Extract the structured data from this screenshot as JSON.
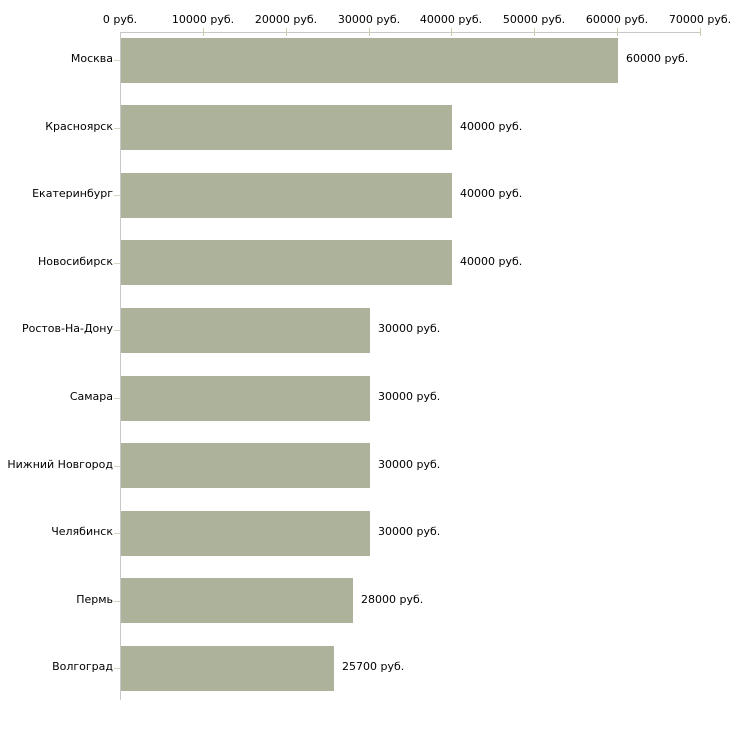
{
  "chart_data": {
    "type": "bar",
    "orientation": "horizontal",
    "title": "",
    "categories": [
      "Москва",
      "Красноярск",
      "Екатеринбург",
      "Новосибирск",
      "Ростов-На-Дону",
      "Самара",
      "Нижний Новгород",
      "Челябинск",
      "Пермь",
      "Волгоград"
    ],
    "values": [
      60000,
      40000,
      40000,
      40000,
      30000,
      30000,
      30000,
      30000,
      28000,
      25700
    ],
    "value_labels": [
      "60000 руб.",
      "40000 руб.",
      "40000 руб.",
      "40000 руб.",
      "30000 руб.",
      "30000 руб.",
      "30000 руб.",
      "30000 руб.",
      "28000 руб.",
      "25700 руб."
    ],
    "x_axis": {
      "position": "top",
      "min": 0,
      "max": 70000,
      "tick_values": [
        0,
        10000,
        20000,
        30000,
        40000,
        50000,
        60000,
        70000
      ],
      "tick_labels": [
        "0 руб.",
        "10000 руб.",
        "20000 руб.",
        "30000 руб.",
        "40000 руб.",
        "50000 руб.",
        "60000 руб.",
        "70000 руб."
      ]
    },
    "grid": false,
    "legend": false,
    "colors": {
      "bar": "#adb29b",
      "axis_line": "#c8c8c8",
      "x_tick": "#c8cbb0",
      "y_tick": "#d2d5c0",
      "text": "#000000",
      "background": "#ffffff"
    }
  }
}
